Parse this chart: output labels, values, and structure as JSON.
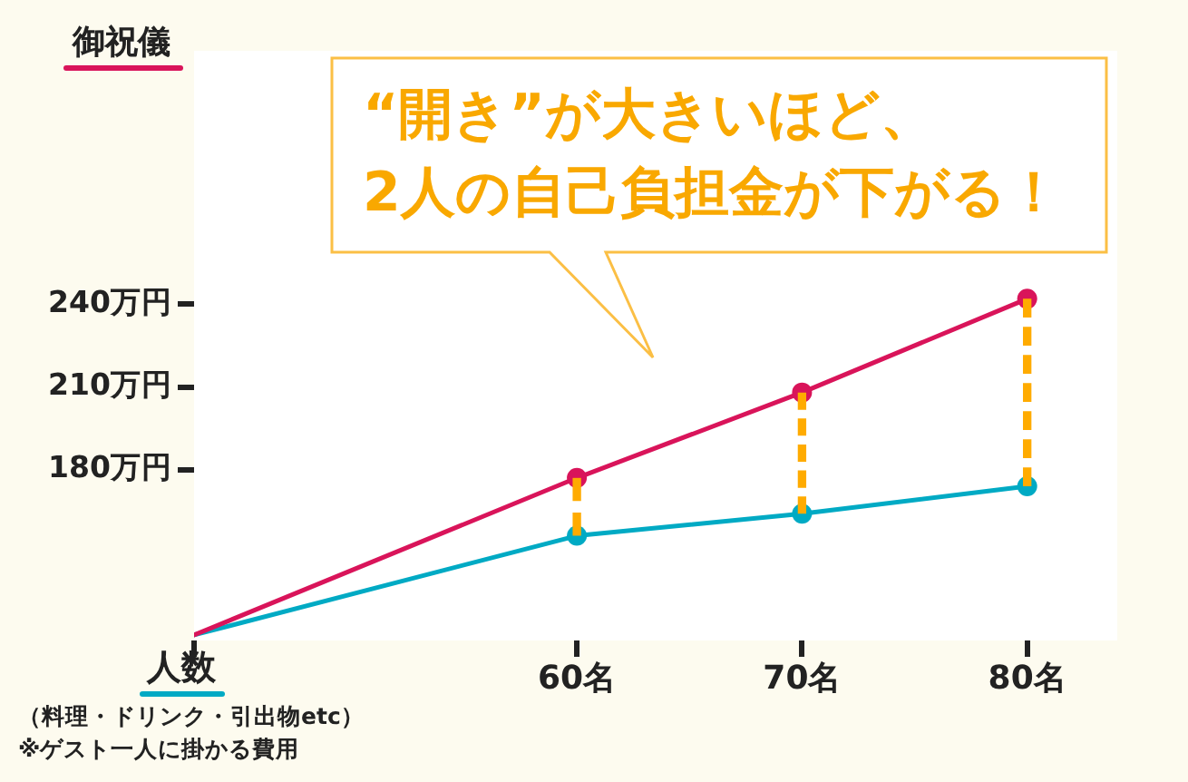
{
  "chart_data": {
    "type": "line",
    "ylabel": "御祝儀",
    "xlabel": "人数",
    "annotations": [
      "“開き”が大きいほど、\n2人の自己負担金が下がる！",
      "（料理・ドリンク・引出物etc）",
      "※ゲスト一人に掛かる費用"
    ],
    "x": [
      43,
      60,
      70,
      80
    ],
    "series": [
      {
        "color": "#d9145a",
        "values": [
          120,
          177,
          208,
          242
        ]
      },
      {
        "color": "#00aac4",
        "values": [
          120,
          156,
          164,
          174
        ]
      },
      {
        "type": "bar",
        "color": "#ffab00",
        "x": [
          60,
          70,
          80
        ],
        "base": [
          156,
          164,
          174
        ],
        "values": [
          21,
          44,
          68
        ],
        "line_style": "dashed"
      }
    ],
    "xlim": [
      43,
      84
    ],
    "xticks": [
      {
        "value": 43,
        "label": null
      },
      {
        "value": 60,
        "label": "60名"
      },
      {
        "value": 70,
        "label": "70名"
      },
      {
        "value": 80,
        "label": "80名"
      }
    ],
    "ylim": [
      118,
      332
    ],
    "yticks": [
      {
        "value": 180,
        "label": "180万円"
      },
      {
        "value": 210,
        "label": "210万円"
      },
      {
        "value": 240,
        "label": "240万円"
      }
    ],
    "marker": "circle"
  }
}
